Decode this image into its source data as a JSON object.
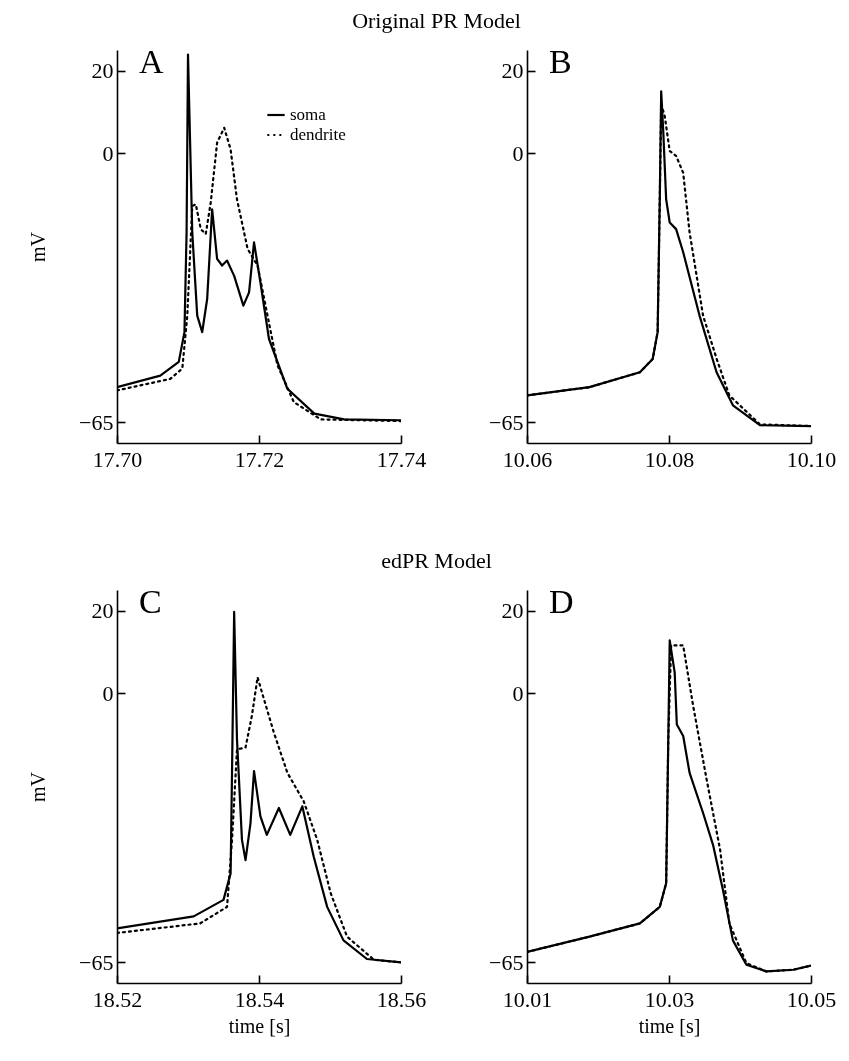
{
  "chart_data": [
    {
      "type": "line",
      "title": "Original PR Model",
      "ylabel": "mV",
      "annotations": [
        "A"
      ],
      "legend": "top right",
      "xlim": [
        17.7,
        17.74
      ],
      "xticks": [
        {
          "value": 17.7,
          "label": "17.70"
        },
        {
          "value": 17.72,
          "label": "17.72"
        },
        {
          "value": 17.74,
          "label": "17.74"
        }
      ],
      "ylim": [
        -70,
        25
      ],
      "yticks": [
        -65,
        0,
        20
      ],
      "series": [
        {
          "name": "soma",
          "color": "#000000",
          "line_style": "solid",
          "x": [
            17.7,
            17.7061,
            17.7087,
            17.7095,
            17.7098,
            17.71,
            17.7106,
            17.7113,
            17.712,
            17.7127,
            17.7134,
            17.7141,
            17.7148,
            17.7155,
            17.7165,
            17.7178,
            17.7186,
            17.7193,
            17.7202,
            17.7214,
            17.724,
            17.7278,
            17.732,
            17.74
          ],
          "values": [
            -56.5,
            -53.7,
            -50.4,
            -43.2,
            -19.1,
            23.9,
            -19.1,
            -39.2,
            -43.2,
            -35.2,
            -13.5,
            -25.5,
            -27.1,
            -25.9,
            -29.6,
            -36.8,
            -33.6,
            -21.5,
            -31.2,
            -44.8,
            -56.9,
            -62.9,
            -64.3,
            -64.5
          ]
        },
        {
          "name": "dendrite",
          "color": "#000000",
          "line_style": "dotted",
          "x": [
            17.7,
            17.7075,
            17.7092,
            17.7099,
            17.7106,
            17.7111,
            17.7118,
            17.7125,
            17.7132,
            17.7141,
            17.7151,
            17.716,
            17.7169,
            17.7184,
            17.7198,
            17.7212,
            17.7226,
            17.7249,
            17.7287,
            17.74
          ],
          "values": [
            -57.3,
            -54.5,
            -52.0,
            -39.2,
            -12.7,
            -12.3,
            -18.3,
            -19.5,
            -11.9,
            2.6,
            6.2,
            1.0,
            -11.1,
            -23.1,
            -27.1,
            -39.2,
            -51.2,
            -60.1,
            -64.3,
            -64.7
          ]
        }
      ]
    },
    {
      "type": "line",
      "annotations": [
        "B"
      ],
      "xlim": [
        10.06,
        10.1
      ],
      "xticks": [
        10.06,
        10.08,
        {
          "value": 10.1,
          "label": "10.10"
        }
      ],
      "ylim": [
        -70,
        25
      ],
      "yticks": [
        -65,
        0,
        20
      ],
      "series": [
        {
          "color": "#000000",
          "line_style": "solid",
          "x": [
            10.06,
            10.0688,
            10.0759,
            10.0777,
            10.0784,
            10.0787,
            10.0789,
            10.0792,
            10.0796,
            10.0801,
            10.081,
            10.082,
            10.0843,
            10.0867,
            10.089,
            10.0928,
            10.1
          ],
          "values": [
            -58.5,
            -56.5,
            -52.9,
            -49.7,
            -43.2,
            -11.1,
            15.0,
            5.0,
            -11.1,
            -16.7,
            -18.3,
            -23.9,
            -39.2,
            -52.9,
            -60.9,
            -65.7,
            -65.9
          ]
        },
        {
          "color": "#000000",
          "line_style": "dotted",
          "x": [
            10.06,
            10.0688,
            10.0759,
            10.0777,
            10.0784,
            10.0787,
            10.0789,
            10.0794,
            10.0801,
            10.081,
            10.082,
            10.0829,
            10.0848,
            10.0867,
            10.0885,
            10.0928,
            10.1
          ],
          "values": [
            -58.5,
            -56.5,
            -52.9,
            -49.7,
            -43.2,
            -11.1,
            12.0,
            9.0,
            0.6,
            -0.6,
            -4.7,
            -19.1,
            -39.2,
            -49.6,
            -58.5,
            -65.5,
            -65.9
          ]
        }
      ]
    },
    {
      "type": "line",
      "title": "edPR Model",
      "xlabel": "time [s]",
      "ylabel": "mV",
      "annotations": [
        "C"
      ],
      "xlim": [
        18.52,
        18.56
      ],
      "xticks": [
        18.52,
        18.54,
        18.56
      ],
      "ylim": [
        -70,
        25
      ],
      "yticks": [
        -65,
        0,
        20
      ],
      "series": [
        {
          "color": "#000000",
          "line_style": "solid",
          "x": [
            18.52,
            18.5308,
            18.535,
            18.536,
            18.5362,
            18.5365,
            18.5369,
            18.5376,
            18.5381,
            18.5388,
            18.5393,
            18.5402,
            18.5411,
            18.5428,
            18.5444,
            18.5461,
            18.5477,
            18.5496,
            18.5519,
            18.5552,
            18.56
          ],
          "values": [
            -56.8,
            -53.9,
            -49.9,
            -43.5,
            -19.2,
            19.7,
            -11.1,
            -35.4,
            -40.3,
            -31.4,
            -18.8,
            -29.7,
            -34.2,
            -27.7,
            -34.2,
            -27.3,
            -39.4,
            -51.6,
            -59.7,
            -64.2,
            -65.0
          ]
        },
        {
          "color": "#000000",
          "line_style": "dotted",
          "x": [
            18.52,
            18.5317,
            18.5355,
            18.5362,
            18.5369,
            18.5381,
            18.539,
            18.5398,
            18.5407,
            18.5421,
            18.544,
            18.5463,
            18.5482,
            18.5501,
            18.5524,
            18.5562,
            18.56
          ],
          "values": [
            -57.9,
            -55.6,
            -51.6,
            -35.4,
            -13.5,
            -13.1,
            -5.4,
            3.9,
            -1.4,
            -9.5,
            -19.2,
            -26.1,
            -35.4,
            -48.3,
            -58.8,
            -64.4,
            -65.0
          ]
        }
      ]
    },
    {
      "type": "line",
      "xlabel": "time [s]",
      "annotations": [
        "D"
      ],
      "xlim": [
        10.01,
        10.05
      ],
      "xticks": [
        10.01,
        10.03,
        10.05
      ],
      "ylim": [
        -70,
        25
      ],
      "yticks": [
        -65,
        0,
        20
      ],
      "series": [
        {
          "color": "#000000",
          "line_style": "solid",
          "x": [
            10.01,
            10.0188,
            10.0259,
            10.0287,
            10.0296,
            10.0299,
            10.0301,
            10.0308,
            10.0311,
            10.032,
            10.0329,
            10.0348,
            10.0362,
            10.0376,
            10.039,
            10.0409,
            10.0437,
            10.0475,
            10.05
          ],
          "values": [
            -62.5,
            -58.8,
            -55.6,
            -51.6,
            -45.9,
            -11.1,
            12.8,
            5.1,
            -7.5,
            -10.3,
            -19.2,
            -28.9,
            -36.6,
            -47.5,
            -59.7,
            -65.6,
            -67.2,
            -66.8,
            -65.8
          ]
        },
        {
          "color": "#000000",
          "line_style": "dotted",
          "x": [
            10.01,
            10.0188,
            10.0259,
            10.0287,
            10.0296,
            10.0299,
            10.0303,
            10.032,
            10.0334,
            10.0353,
            10.0372,
            10.0385,
            10.0409,
            10.0437,
            10.0475,
            10.05
          ],
          "values": [
            -62.5,
            -58.8,
            -55.6,
            -51.6,
            -45.9,
            -11.1,
            11.6,
            11.6,
            -3.0,
            -20.8,
            -37.8,
            -55.6,
            -65.2,
            -67.2,
            -66.8,
            -65.8
          ]
        }
      ]
    }
  ]
}
